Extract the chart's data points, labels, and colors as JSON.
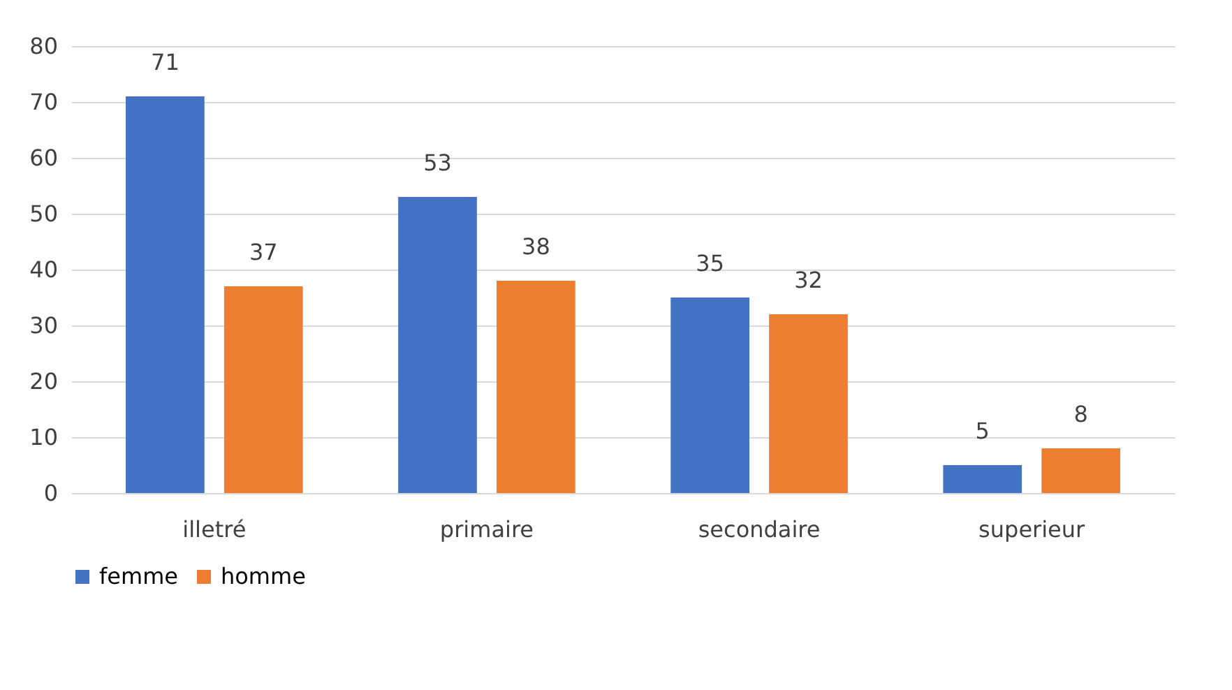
{
  "chart_data": {
    "type": "bar",
    "categories": [
      "illetré",
      "primaire",
      "secondaire",
      "superieur"
    ],
    "series": [
      {
        "name": "femme",
        "color": "#4472c4",
        "values": [
          71,
          53,
          35,
          5
        ]
      },
      {
        "name": "homme",
        "color": "#ed7d31",
        "values": [
          37,
          38,
          32,
          8
        ]
      }
    ],
    "ylim": [
      0,
      80
    ],
    "yticks": [
      0,
      10,
      20,
      30,
      40,
      50,
      60,
      70,
      80
    ],
    "grid": "y",
    "legend": "bottom",
    "data_labels": true
  }
}
